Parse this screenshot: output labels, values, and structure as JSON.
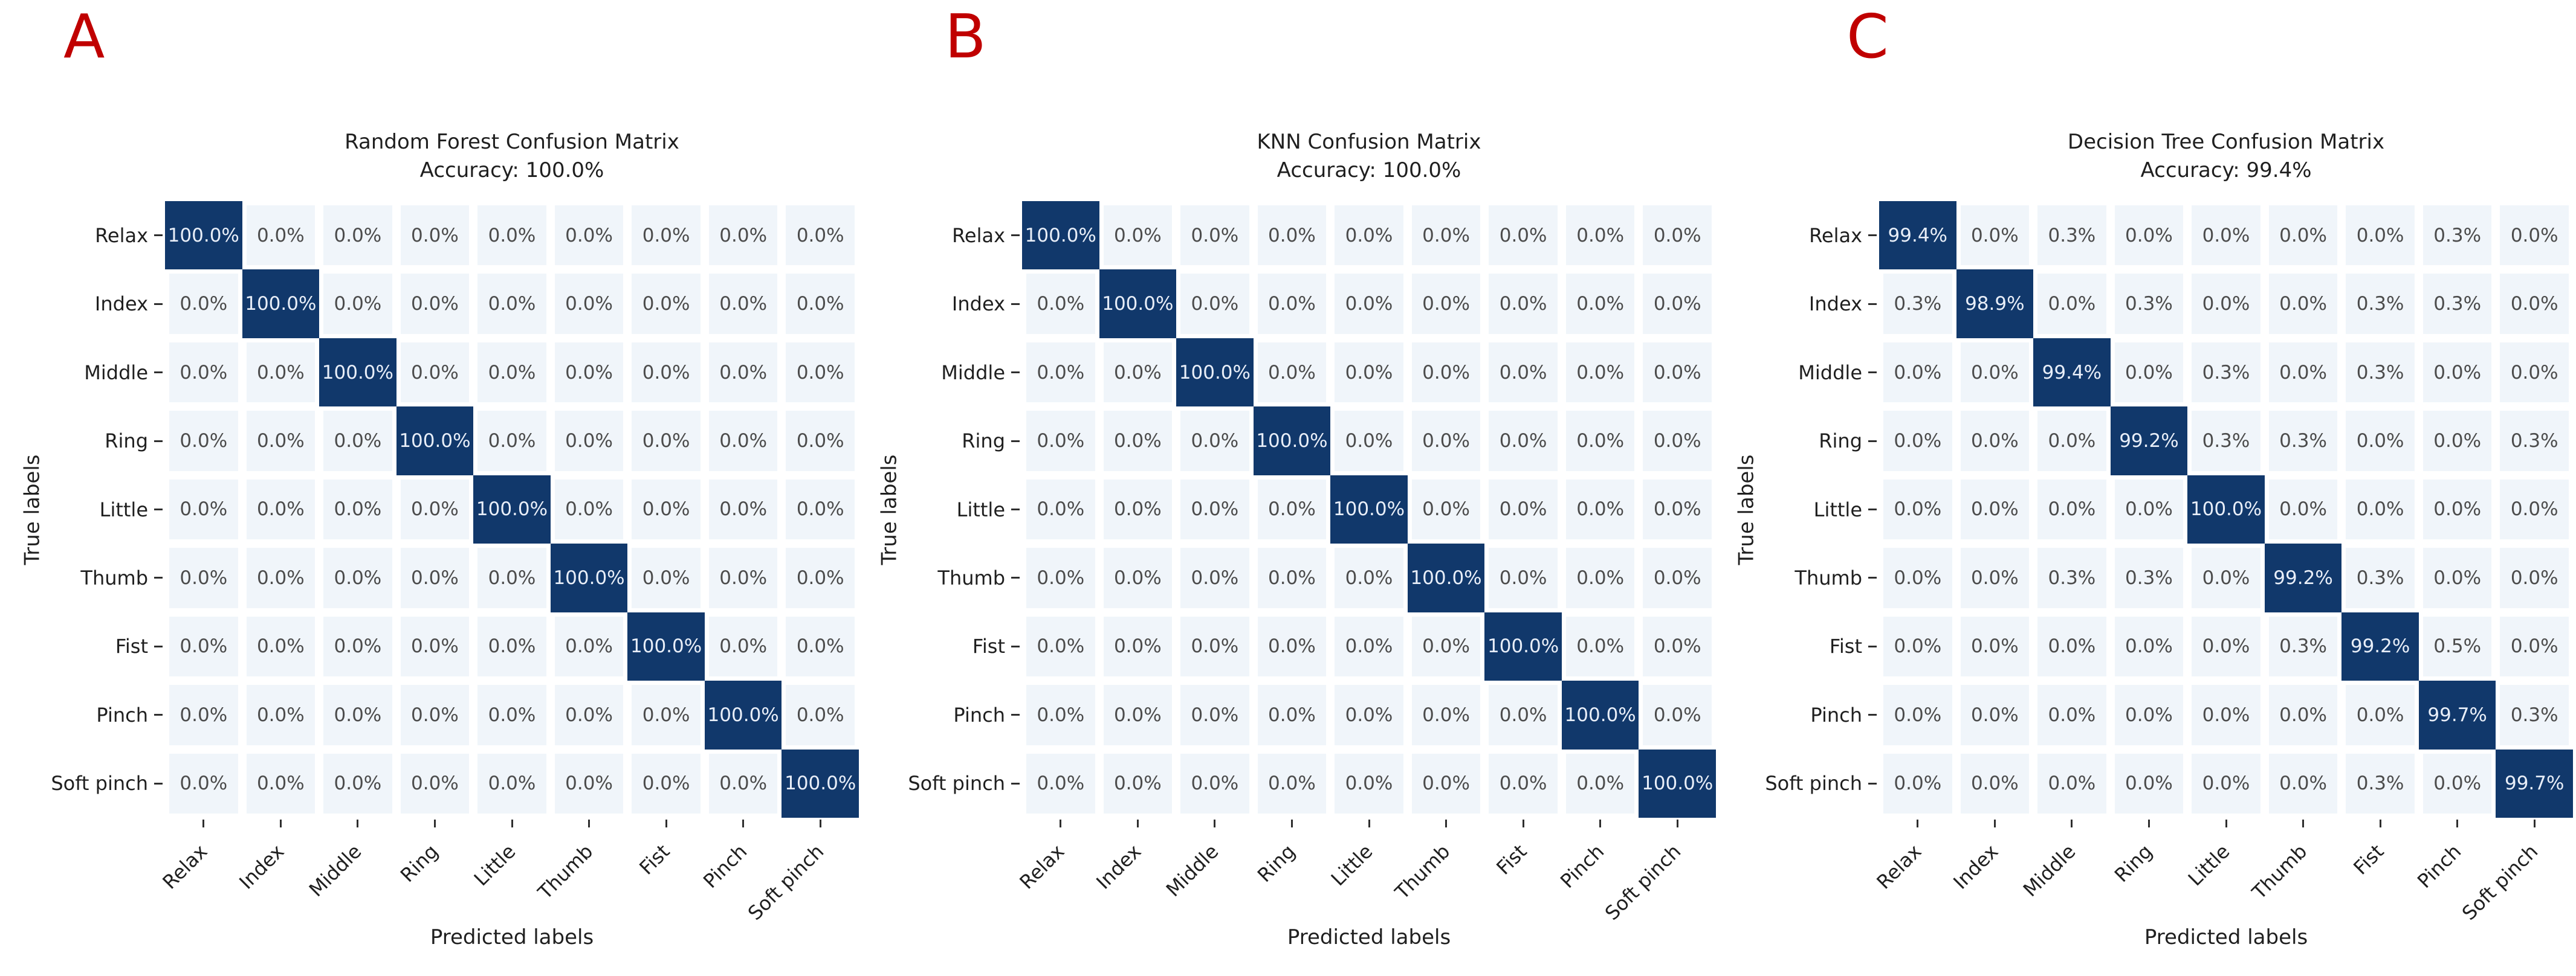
{
  "figure": {
    "panel_letters": [
      "A",
      "B",
      "C"
    ],
    "colors": {
      "panel_letter": "#c00000",
      "diagonal_cell": "#11386b",
      "off_diagonal_cell": "#f0f5fa",
      "diagonal_text": "#e8eef8",
      "off_diagonal_text": "#4c4c4c",
      "label_text": "#1f1f1f",
      "grid_gap": "#ffffff"
    }
  },
  "chart_data": [
    {
      "type": "heatmap",
      "panel": "A",
      "title": "Random Forest Confusion Matrix",
      "subtitle": "Accuracy: 100.0%",
      "accuracy_pct": 100.0,
      "xlabel": "Predicted labels",
      "ylabel": "True labels",
      "unit": "%",
      "colormap": "Blues",
      "categories": [
        "Relax",
        "Index",
        "Middle",
        "Ring",
        "Little",
        "Thumb",
        "Fist",
        "Pinch",
        "Soft pinch"
      ],
      "values": [
        [
          100.0,
          0.0,
          0.0,
          0.0,
          0.0,
          0.0,
          0.0,
          0.0,
          0.0
        ],
        [
          0.0,
          100.0,
          0.0,
          0.0,
          0.0,
          0.0,
          0.0,
          0.0,
          0.0
        ],
        [
          0.0,
          0.0,
          100.0,
          0.0,
          0.0,
          0.0,
          0.0,
          0.0,
          0.0
        ],
        [
          0.0,
          0.0,
          0.0,
          100.0,
          0.0,
          0.0,
          0.0,
          0.0,
          0.0
        ],
        [
          0.0,
          0.0,
          0.0,
          0.0,
          100.0,
          0.0,
          0.0,
          0.0,
          0.0
        ],
        [
          0.0,
          0.0,
          0.0,
          0.0,
          0.0,
          100.0,
          0.0,
          0.0,
          0.0
        ],
        [
          0.0,
          0.0,
          0.0,
          0.0,
          0.0,
          0.0,
          100.0,
          0.0,
          0.0
        ],
        [
          0.0,
          0.0,
          0.0,
          0.0,
          0.0,
          0.0,
          0.0,
          100.0,
          0.0
        ],
        [
          0.0,
          0.0,
          0.0,
          0.0,
          0.0,
          0.0,
          0.0,
          0.0,
          100.0
        ]
      ]
    },
    {
      "type": "heatmap",
      "panel": "B",
      "title": "KNN Confusion Matrix",
      "subtitle": "Accuracy: 100.0%",
      "accuracy_pct": 100.0,
      "xlabel": "Predicted labels",
      "ylabel": "True labels",
      "unit": "%",
      "colormap": "Blues",
      "categories": [
        "Relax",
        "Index",
        "Middle",
        "Ring",
        "Little",
        "Thumb",
        "Fist",
        "Pinch",
        "Soft pinch"
      ],
      "values": [
        [
          100.0,
          0.0,
          0.0,
          0.0,
          0.0,
          0.0,
          0.0,
          0.0,
          0.0
        ],
        [
          0.0,
          100.0,
          0.0,
          0.0,
          0.0,
          0.0,
          0.0,
          0.0,
          0.0
        ],
        [
          0.0,
          0.0,
          100.0,
          0.0,
          0.0,
          0.0,
          0.0,
          0.0,
          0.0
        ],
        [
          0.0,
          0.0,
          0.0,
          100.0,
          0.0,
          0.0,
          0.0,
          0.0,
          0.0
        ],
        [
          0.0,
          0.0,
          0.0,
          0.0,
          100.0,
          0.0,
          0.0,
          0.0,
          0.0
        ],
        [
          0.0,
          0.0,
          0.0,
          0.0,
          0.0,
          100.0,
          0.0,
          0.0,
          0.0
        ],
        [
          0.0,
          0.0,
          0.0,
          0.0,
          0.0,
          0.0,
          100.0,
          0.0,
          0.0
        ],
        [
          0.0,
          0.0,
          0.0,
          0.0,
          0.0,
          0.0,
          0.0,
          100.0,
          0.0
        ],
        [
          0.0,
          0.0,
          0.0,
          0.0,
          0.0,
          0.0,
          0.0,
          0.0,
          100.0
        ]
      ]
    },
    {
      "type": "heatmap",
      "panel": "C",
      "title": "Decision Tree Confusion Matrix",
      "subtitle": "Accuracy: 99.4%",
      "accuracy_pct": 99.4,
      "xlabel": "Predicted labels",
      "ylabel": "True labels",
      "unit": "%",
      "colormap": "Blues",
      "categories": [
        "Relax",
        "Index",
        "Middle",
        "Ring",
        "Little",
        "Thumb",
        "Fist",
        "Pinch",
        "Soft pinch"
      ],
      "values": [
        [
          99.4,
          0.0,
          0.3,
          0.0,
          0.0,
          0.0,
          0.0,
          0.3,
          0.0
        ],
        [
          0.3,
          98.9,
          0.0,
          0.3,
          0.0,
          0.0,
          0.3,
          0.3,
          0.0
        ],
        [
          0.0,
          0.0,
          99.4,
          0.0,
          0.3,
          0.0,
          0.3,
          0.0,
          0.0
        ],
        [
          0.0,
          0.0,
          0.0,
          99.2,
          0.3,
          0.3,
          0.0,
          0.0,
          0.3
        ],
        [
          0.0,
          0.0,
          0.0,
          0.0,
          100.0,
          0.0,
          0.0,
          0.0,
          0.0
        ],
        [
          0.0,
          0.0,
          0.3,
          0.3,
          0.0,
          99.2,
          0.3,
          0.0,
          0.0
        ],
        [
          0.0,
          0.0,
          0.0,
          0.0,
          0.0,
          0.3,
          99.2,
          0.5,
          0.0
        ],
        [
          0.0,
          0.0,
          0.0,
          0.0,
          0.0,
          0.0,
          0.0,
          99.7,
          0.3
        ],
        [
          0.0,
          0.0,
          0.0,
          0.0,
          0.0,
          0.0,
          0.3,
          0.0,
          99.7
        ]
      ]
    }
  ]
}
